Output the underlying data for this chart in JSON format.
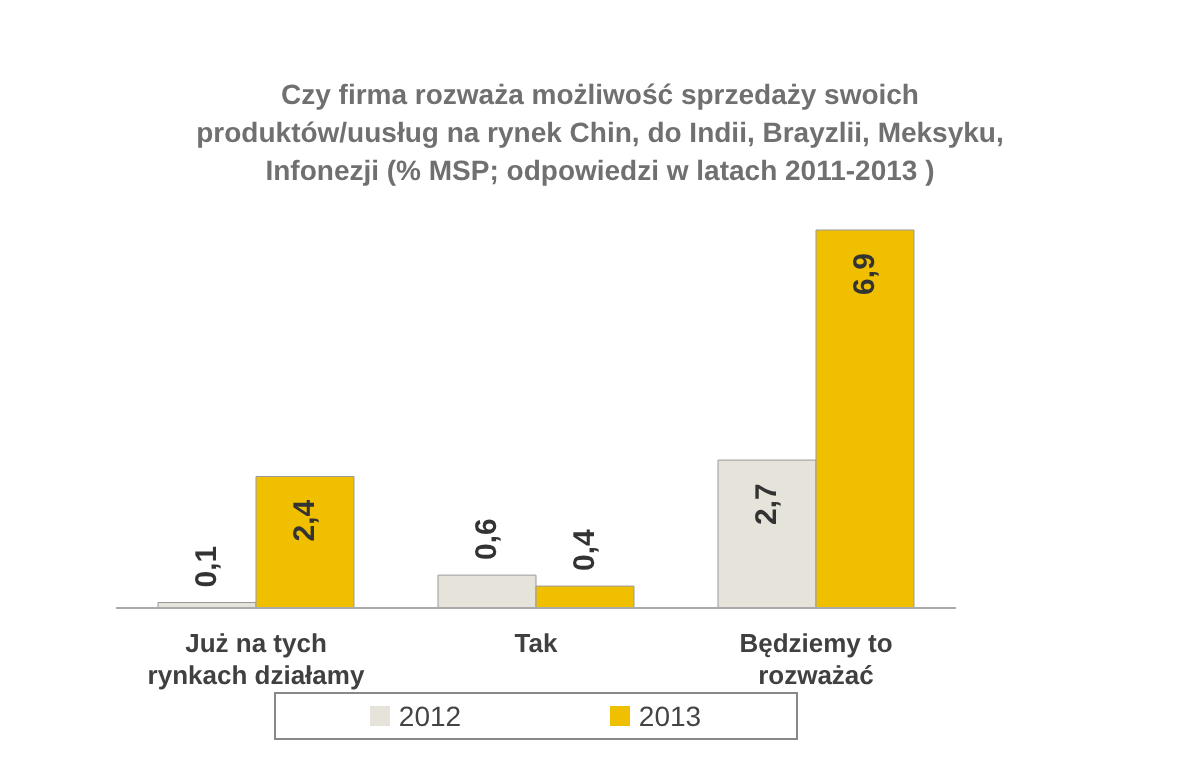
{
  "chart_data": {
    "type": "bar",
    "title": "Czy firma rozważa możliwość sprzedaży swoich produktów/uusług na rynek Chin, do Indii, Brayzlii, Meksyku, Infonezji   (% MSP; odpowiedzi w latach 2011-2013 )",
    "categories": [
      "Już na tych rynkach działamy",
      "Tak",
      "Będziemy to rozważać"
    ],
    "series": [
      {
        "name": "2012",
        "color": "#e6e4da",
        "values": [
          0.1,
          0.6,
          2.7
        ],
        "value_labels": [
          "0,1",
          "0,6",
          "2,7"
        ]
      },
      {
        "name": "2013",
        "color": "#f0c000",
        "values": [
          2.4,
          0.4,
          6.9
        ],
        "value_labels": [
          "2,4",
          "0,4",
          "6,9"
        ]
      }
    ],
    "legend": "bottom",
    "grid": false
  }
}
